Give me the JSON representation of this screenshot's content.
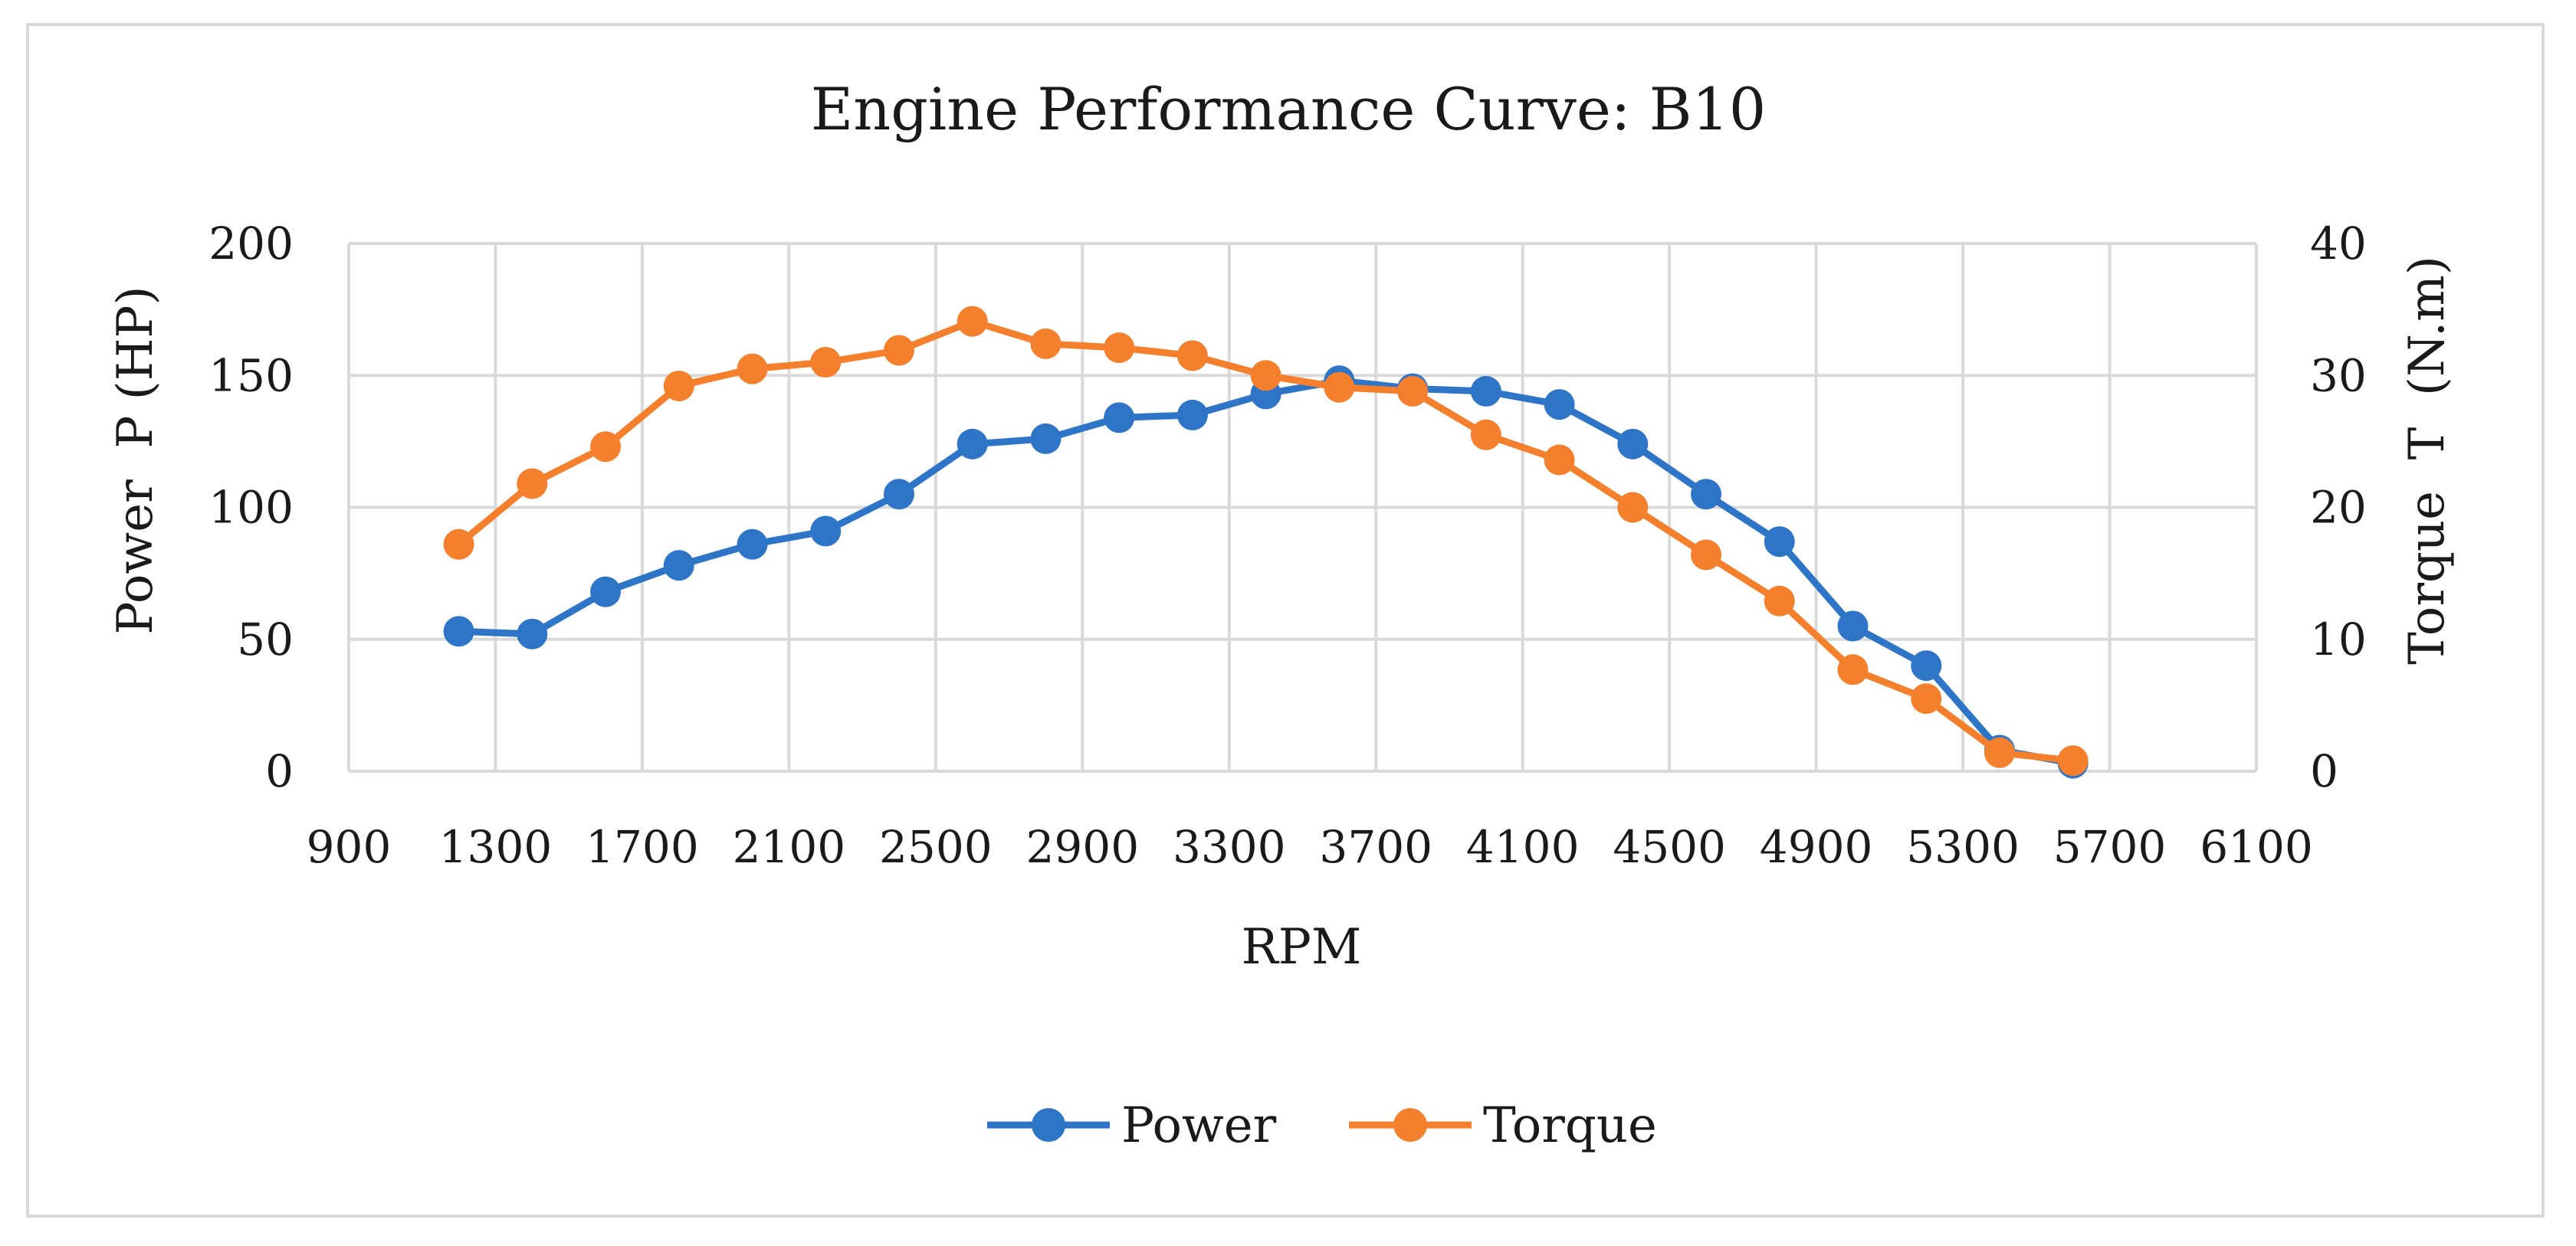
{
  "chart_data": {
    "type": "line",
    "title": "Engine Performance Curve: B10",
    "xlabel": "RPM",
    "ylabel": "Power  P (HP)",
    "y2label": "Torque  T  (N.m)",
    "xlim": [
      900,
      6100
    ],
    "x_ticks": [
      900,
      1300,
      1700,
      2100,
      2500,
      2900,
      3300,
      3700,
      4100,
      4500,
      4900,
      5300,
      5700,
      6100
    ],
    "ylim": [
      0,
      200
    ],
    "y_ticks": [
      0,
      50,
      100,
      150,
      200
    ],
    "y2lim": [
      0,
      40
    ],
    "y2_ticks": [
      0,
      10,
      20,
      30,
      40
    ],
    "grid": true,
    "legend_position": "bottom",
    "series": [
      {
        "name": "Power",
        "axis": "left",
        "color": "#2e75c8",
        "x": [
          1200,
          1400,
          1600,
          1800,
          2000,
          2200,
          2400,
          2600,
          2800,
          3000,
          3200,
          3400,
          3600,
          3800,
          4000,
          4200,
          4400,
          4600,
          4800,
          5000,
          5200,
          5400,
          5600
        ],
        "values": [
          53,
          52,
          68,
          78,
          86,
          91,
          105,
          124,
          126,
          134,
          135,
          143,
          148,
          145,
          144,
          139,
          124,
          105,
          87,
          55,
          40,
          8,
          3
        ]
      },
      {
        "name": "Torque",
        "axis": "right",
        "color": "#f47f2c",
        "x": [
          1200,
          1400,
          1600,
          1800,
          2000,
          2200,
          2400,
          2600,
          2800,
          3000,
          3200,
          3400,
          3600,
          3800,
          4000,
          4200,
          4400,
          4600,
          4800,
          5000,
          5200,
          5400,
          5600
        ],
        "values": [
          17.2,
          21.8,
          24.6,
          29.2,
          30.5,
          31,
          31.9,
          34.1,
          32.4,
          32.1,
          31.5,
          30,
          29.1,
          28.8,
          25.5,
          23.6,
          20,
          16.4,
          12.9,
          7.7,
          5.5,
          1.4,
          0.8
        ]
      }
    ]
  }
}
